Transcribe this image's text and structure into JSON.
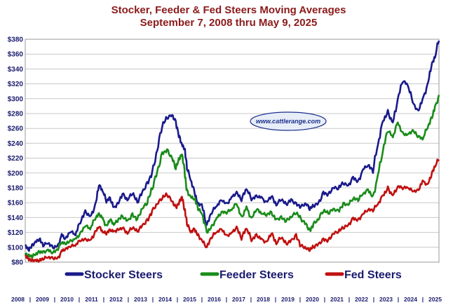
{
  "colors": {
    "stocker": "#1a1a8c",
    "feeder": "#1a8c1a",
    "fed": "#c01010",
    "title": "#8b1a1a",
    "labels": "#1a1a6e",
    "grid": "#c8c8c8"
  },
  "chart_data": {
    "type": "line",
    "title": "Stocker, Feeder & Fed Steers Moving Averages",
    "subtitle": "September 7, 2008 thru May 9, 2025",
    "ylim": [
      80,
      380
    ],
    "yticks": [
      "$80",
      "$100",
      "$120",
      "$140",
      "$160",
      "$180",
      "$200",
      "$220",
      "$240",
      "$260",
      "$280",
      "$300",
      "$320",
      "$340",
      "$360",
      "$380"
    ],
    "xlim": [
      2008.68,
      2025.36
    ],
    "xticks": [
      "2008",
      "2009",
      "2010",
      "2011",
      "2012",
      "2013",
      "2014",
      "2015",
      "2016",
      "2017",
      "2018",
      "2019",
      "2020",
      "2021",
      "2022",
      "2023",
      "2024",
      "2025"
    ],
    "grid": true,
    "legend_position": "bottom",
    "logo": "www.cattlerange.com",
    "series": [
      {
        "name": "Stocker Steers",
        "color_key": "stocker",
        "x": [
          2008.68,
          2008.8,
          2008.95,
          2009.1,
          2009.25,
          2009.4,
          2009.6,
          2009.8,
          2010.0,
          2010.15,
          2010.3,
          2010.5,
          2010.7,
          2010.9,
          2011.1,
          2011.3,
          2011.5,
          2011.65,
          2011.8,
          2011.95,
          2012.1,
          2012.25,
          2012.4,
          2012.6,
          2012.8,
          2013.0,
          2013.2,
          2013.4,
          2013.6,
          2013.8,
          2014.0,
          2014.2,
          2014.4,
          2014.6,
          2014.75,
          2014.9,
          2015.0,
          2015.1,
          2015.2,
          2015.35,
          2015.5,
          2015.65,
          2015.8,
          2016.0,
          2016.2,
          2016.4,
          2016.6,
          2016.8,
          2017.0,
          2017.2,
          2017.4,
          2017.6,
          2017.8,
          2018.0,
          2018.2,
          2018.4,
          2018.6,
          2018.8,
          2019.0,
          2019.2,
          2019.4,
          2019.6,
          2019.8,
          2020.0,
          2020.15,
          2020.3,
          2020.5,
          2020.7,
          2020.9,
          2021.1,
          2021.3,
          2021.5,
          2021.7,
          2021.9,
          2022.1,
          2022.3,
          2022.5,
          2022.7,
          2022.9,
          2023.1,
          2023.3,
          2023.5,
          2023.7,
          2023.9,
          2024.1,
          2024.3,
          2024.5,
          2024.7,
          2024.9,
          2025.05,
          2025.2,
          2025.36
        ],
        "values": [
          102,
          97,
          104,
          108,
          111,
          101,
          105,
          99,
          104,
          118,
          112,
          120,
          116,
          132,
          150,
          142,
          158,
          183,
          175,
          160,
          167,
          154,
          160,
          172,
          163,
          171,
          160,
          175,
          188,
          202,
          230,
          262,
          273,
          278,
          270,
          250,
          238,
          232,
          205,
          190,
          175,
          160,
          158,
          130,
          145,
          155,
          163,
          160,
          168,
          175,
          162,
          178,
          163,
          170,
          168,
          162,
          168,
          156,
          163,
          158,
          165,
          160,
          155,
          158,
          150,
          155,
          160,
          175,
          172,
          180,
          178,
          185,
          183,
          195,
          190,
          205,
          210,
          200,
          238,
          270,
          285,
          268,
          300,
          322,
          318,
          295,
          285,
          300,
          320,
          342,
          355,
          378
        ]
      },
      {
        "name": "Feeder Steers",
        "color_key": "feeder",
        "x": [
          2008.68,
          2008.8,
          2008.95,
          2009.1,
          2009.25,
          2009.4,
          2009.6,
          2009.8,
          2010.0,
          2010.15,
          2010.3,
          2010.5,
          2010.7,
          2010.9,
          2011.1,
          2011.3,
          2011.5,
          2011.65,
          2011.8,
          2011.95,
          2012.1,
          2012.25,
          2012.4,
          2012.6,
          2012.8,
          2013.0,
          2013.2,
          2013.4,
          2013.6,
          2013.8,
          2014.0,
          2014.2,
          2014.4,
          2014.6,
          2014.75,
          2014.9,
          2015.0,
          2015.1,
          2015.2,
          2015.35,
          2015.5,
          2015.65,
          2015.8,
          2016.0,
          2016.2,
          2016.4,
          2016.6,
          2016.8,
          2017.0,
          2017.2,
          2017.4,
          2017.6,
          2017.8,
          2018.0,
          2018.2,
          2018.4,
          2018.6,
          2018.8,
          2019.0,
          2019.2,
          2019.4,
          2019.6,
          2019.8,
          2020.0,
          2020.15,
          2020.3,
          2020.5,
          2020.7,
          2020.9,
          2021.1,
          2021.3,
          2021.5,
          2021.7,
          2021.9,
          2022.1,
          2022.3,
          2022.5,
          2022.7,
          2022.9,
          2023.1,
          2023.3,
          2023.5,
          2023.7,
          2023.9,
          2024.1,
          2024.3,
          2024.5,
          2024.7,
          2024.9,
          2025.05,
          2025.2,
          2025.36
        ],
        "values": [
          92,
          88,
          86,
          90,
          94,
          95,
          97,
          93,
          96,
          106,
          104,
          110,
          112,
          120,
          128,
          124,
          137,
          146,
          140,
          130,
          137,
          130,
          134,
          142,
          136,
          146,
          138,
          152,
          158,
          178,
          202,
          228,
          232,
          220,
          205,
          218,
          225,
          205,
          178,
          168,
          165,
          150,
          145,
          120,
          130,
          140,
          148,
          145,
          150,
          158,
          142,
          155,
          140,
          150,
          145,
          142,
          148,
          138,
          142,
          135,
          140,
          145,
          138,
          132,
          124,
          132,
          137,
          148,
          145,
          152,
          150,
          160,
          157,
          165,
          162,
          172,
          178,
          170,
          198,
          230,
          255,
          248,
          268,
          255,
          252,
          258,
          248,
          245,
          260,
          275,
          290,
          305
        ]
      },
      {
        "name": "Fed Steers",
        "color_key": "fed",
        "x": [
          2008.68,
          2008.8,
          2008.95,
          2009.1,
          2009.25,
          2009.4,
          2009.6,
          2009.8,
          2010.0,
          2010.15,
          2010.3,
          2010.5,
          2010.7,
          2010.9,
          2011.1,
          2011.3,
          2011.5,
          2011.65,
          2011.8,
          2011.95,
          2012.1,
          2012.25,
          2012.4,
          2012.6,
          2012.8,
          2013.0,
          2013.2,
          2013.4,
          2013.6,
          2013.8,
          2014.0,
          2014.2,
          2014.4,
          2014.6,
          2014.75,
          2014.9,
          2015.0,
          2015.1,
          2015.2,
          2015.35,
          2015.5,
          2015.65,
          2015.8,
          2016.0,
          2016.2,
          2016.4,
          2016.6,
          2016.8,
          2017.0,
          2017.2,
          2017.4,
          2017.6,
          2017.8,
          2018.0,
          2018.2,
          2018.4,
          2018.6,
          2018.8,
          2019.0,
          2019.2,
          2019.4,
          2019.6,
          2019.8,
          2020.0,
          2020.15,
          2020.3,
          2020.5,
          2020.7,
          2020.9,
          2021.1,
          2021.3,
          2021.5,
          2021.7,
          2021.9,
          2022.1,
          2022.3,
          2022.5,
          2022.7,
          2022.9,
          2023.1,
          2023.3,
          2023.5,
          2023.7,
          2023.9,
          2024.1,
          2024.3,
          2024.5,
          2024.7,
          2024.9,
          2025.05,
          2025.2,
          2025.36
        ],
        "values": [
          88,
          85,
          84,
          83,
          82,
          83,
          86,
          85,
          87,
          96,
          98,
          100,
          102,
          108,
          112,
          110,
          122,
          127,
          120,
          117,
          124,
          122,
          125,
          126,
          118,
          125,
          121,
          130,
          138,
          150,
          158,
          165,
          170,
          162,
          155,
          163,
          168,
          150,
          130,
          120,
          125,
          118,
          110,
          100,
          112,
          120,
          124,
          117,
          120,
          128,
          110,
          125,
          108,
          118,
          112,
          108,
          118,
          104,
          112,
          105,
          110,
          118,
          102,
          98,
          95,
          100,
          105,
          112,
          110,
          118,
          120,
          125,
          130,
          140,
          138,
          145,
          150,
          148,
          158,
          170,
          182,
          170,
          182,
          178,
          180,
          175,
          178,
          190,
          185,
          195,
          208,
          218
        ]
      }
    ]
  }
}
